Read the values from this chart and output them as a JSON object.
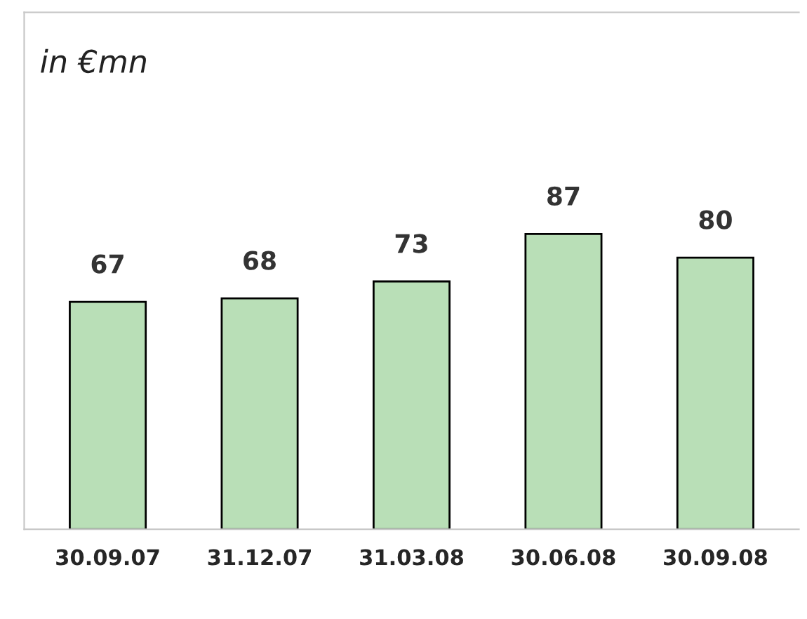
{
  "chart_data": {
    "type": "bar",
    "annotations": [
      "in €mn"
    ],
    "categories": [
      "30.09.07",
      "31.12.07",
      "31.03.08",
      "30.06.08",
      "30.09.08"
    ],
    "values": [
      67,
      68,
      73,
      87,
      80
    ],
    "color": "#b9dfb7",
    "data_labels": true,
    "tick_labels": "x",
    "grid": false,
    "legend": false
  }
}
